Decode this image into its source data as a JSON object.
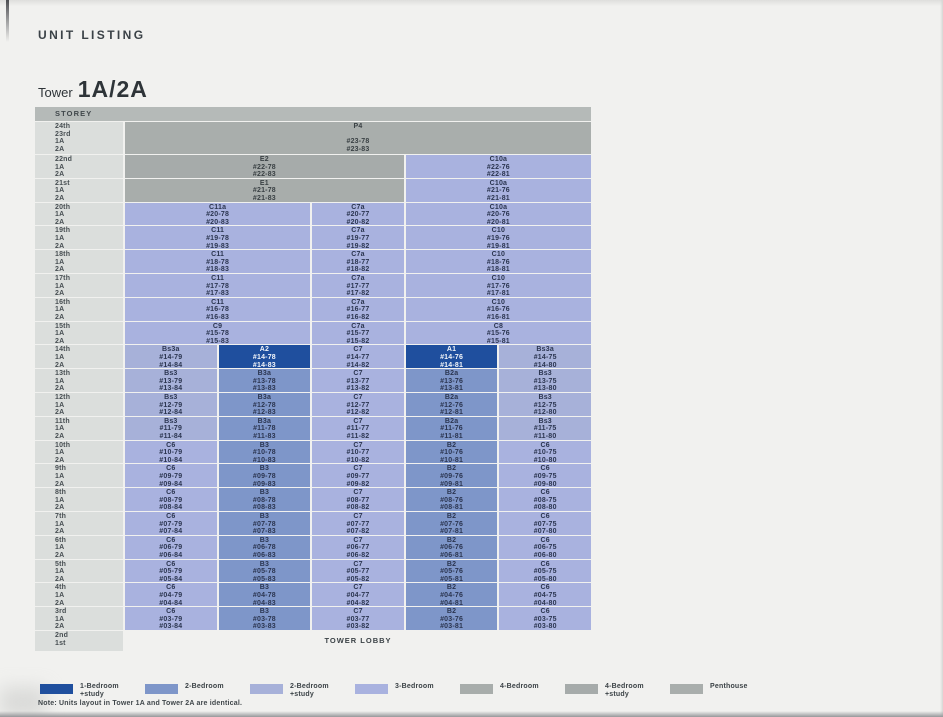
{
  "page": {
    "title": "UNIT LISTING",
    "tower_label": "Tower",
    "tower_value": "1A/2A",
    "note": "Note: Units layout in Tower 1A and Tower 2A are identical."
  },
  "colors": {
    "one_bed_study": "#1f4f9e",
    "two_bed": "#7e96c9",
    "two_bed_study": "#a7b1d9",
    "three_bed": "#a9b2df",
    "four_bed": "#a8adab",
    "four_bed_study": "#a6abaa",
    "penthouse": "#a9aeac",
    "lobby": "transparent",
    "header_bg": "#b5bab8",
    "storey_bg": "#dbdedc",
    "page_bg": "#f1f1ef"
  },
  "table": {
    "header": "STOREY",
    "rows": [
      {
        "storey": [
          "24th",
          "23rd",
          "1A",
          "2A"
        ],
        "h": "tall",
        "cells": [
          {
            "span": 5,
            "type": "penthouse",
            "lines": [
              "P4",
              "",
              "#23-78",
              "#23-83"
            ]
          }
        ]
      },
      {
        "storey": [
          "22nd",
          "1A",
          "2A"
        ],
        "cells": [
          {
            "span": 3,
            "type": "four_bed_study",
            "lines": [
              "E2",
              "#22-78",
              "#22-83"
            ]
          },
          {
            "span": 2,
            "type": "three_bed",
            "lines": [
              "C10a",
              "#22-76",
              "#22-81"
            ]
          }
        ]
      },
      {
        "storey": [
          "21st",
          "1A",
          "2A"
        ],
        "cells": [
          {
            "span": 3,
            "type": "four_bed",
            "lines": [
              "E1",
              "#21-78",
              "#21-83"
            ]
          },
          {
            "span": 2,
            "type": "three_bed",
            "lines": [
              "C10a",
              "#21-76",
              "#21-81"
            ]
          }
        ]
      },
      {
        "storey": [
          "20th",
          "1A",
          "2A"
        ],
        "cells": [
          {
            "span": 2,
            "type": "three_bed",
            "lines": [
              "C11a",
              "#20-78",
              "#20-83"
            ]
          },
          {
            "span": 1,
            "type": "three_bed",
            "lines": [
              "C7a",
              "#20-77",
              "#20-82"
            ]
          },
          {
            "span": 2,
            "type": "three_bed",
            "lines": [
              "C10a",
              "#20-76",
              "#20-81"
            ]
          }
        ]
      },
      {
        "storey": [
          "19th",
          "1A",
          "2A"
        ],
        "cells": [
          {
            "span": 2,
            "type": "three_bed",
            "lines": [
              "C11",
              "#19-78",
              "#19-83"
            ]
          },
          {
            "span": 1,
            "type": "three_bed",
            "lines": [
              "C7a",
              "#19-77",
              "#19-82"
            ]
          },
          {
            "span": 2,
            "type": "three_bed",
            "lines": [
              "C10",
              "#19-76",
              "#19-81"
            ]
          }
        ]
      },
      {
        "storey": [
          "18th",
          "1A",
          "2A"
        ],
        "cells": [
          {
            "span": 2,
            "type": "three_bed",
            "lines": [
              "C11",
              "#18-78",
              "#18-83"
            ]
          },
          {
            "span": 1,
            "type": "three_bed",
            "lines": [
              "C7a",
              "#18-77",
              "#18-82"
            ]
          },
          {
            "span": 2,
            "type": "three_bed",
            "lines": [
              "C10",
              "#18-76",
              "#18-81"
            ]
          }
        ]
      },
      {
        "storey": [
          "17th",
          "1A",
          "2A"
        ],
        "cells": [
          {
            "span": 2,
            "type": "three_bed",
            "lines": [
              "C11",
              "#17-78",
              "#17-83"
            ]
          },
          {
            "span": 1,
            "type": "three_bed",
            "lines": [
              "C7a",
              "#17-77",
              "#17-82"
            ]
          },
          {
            "span": 2,
            "type": "three_bed",
            "lines": [
              "C10",
              "#17-76",
              "#17-81"
            ]
          }
        ]
      },
      {
        "storey": [
          "16th",
          "1A",
          "2A"
        ],
        "cells": [
          {
            "span": 2,
            "type": "three_bed",
            "lines": [
              "C11",
              "#16-78",
              "#16-83"
            ]
          },
          {
            "span": 1,
            "type": "three_bed",
            "lines": [
              "C7a",
              "#16-77",
              "#16-82"
            ]
          },
          {
            "span": 2,
            "type": "three_bed",
            "lines": [
              "C10",
              "#16-76",
              "#16-81"
            ]
          }
        ]
      },
      {
        "storey": [
          "15th",
          "1A",
          "2A"
        ],
        "cells": [
          {
            "span": 2,
            "type": "three_bed",
            "lines": [
              "C9",
              "#15-78",
              "#15-83"
            ]
          },
          {
            "span": 1,
            "type": "three_bed",
            "lines": [
              "C7a",
              "#15-77",
              "#15-82"
            ]
          },
          {
            "span": 2,
            "type": "three_bed",
            "lines": [
              "C8",
              "#15-76",
              "#15-81"
            ]
          }
        ]
      },
      {
        "storey": [
          "14th",
          "1A",
          "2A"
        ],
        "cells": [
          {
            "span": 1,
            "type": "two_bed_study",
            "lines": [
              "Bs3a",
              "#14-79",
              "#14-84"
            ]
          },
          {
            "span": 1,
            "type": "one_bed_study",
            "lines": [
              "A2",
              "#14-78",
              "#14-83"
            ]
          },
          {
            "span": 1,
            "type": "three_bed",
            "lines": [
              "C7",
              "#14-77",
              "#14-82"
            ]
          },
          {
            "span": 1,
            "type": "one_bed_study",
            "lines": [
              "A1",
              "#14-76",
              "#14-81"
            ]
          },
          {
            "span": 1,
            "type": "two_bed_study",
            "lines": [
              "Bs3a",
              "#14-75",
              "#14-80"
            ]
          }
        ]
      },
      {
        "storey": [
          "13th",
          "1A",
          "2A"
        ],
        "cells": [
          {
            "span": 1,
            "type": "two_bed_study",
            "lines": [
              "Bs3",
              "#13-79",
              "#13-84"
            ]
          },
          {
            "span": 1,
            "type": "two_bed",
            "lines": [
              "B3a",
              "#13-78",
              "#13-83"
            ]
          },
          {
            "span": 1,
            "type": "three_bed",
            "lines": [
              "C7",
              "#13-77",
              "#13-82"
            ]
          },
          {
            "span": 1,
            "type": "two_bed",
            "lines": [
              "B2a",
              "#13-76",
              "#13-81"
            ]
          },
          {
            "span": 1,
            "type": "two_bed_study",
            "lines": [
              "Bs3",
              "#13-75",
              "#13-80"
            ]
          }
        ]
      },
      {
        "storey": [
          "12th",
          "1A",
          "2A"
        ],
        "cells": [
          {
            "span": 1,
            "type": "two_bed_study",
            "lines": [
              "Bs3",
              "#12-79",
              "#12-84"
            ]
          },
          {
            "span": 1,
            "type": "two_bed",
            "lines": [
              "B3a",
              "#12-78",
              "#12-83"
            ]
          },
          {
            "span": 1,
            "type": "three_bed",
            "lines": [
              "C7",
              "#12-77",
              "#12-82"
            ]
          },
          {
            "span": 1,
            "type": "two_bed",
            "lines": [
              "B2a",
              "#12-76",
              "#12-81"
            ]
          },
          {
            "span": 1,
            "type": "two_bed_study",
            "lines": [
              "Bs3",
              "#12-75",
              "#12-80"
            ]
          }
        ]
      },
      {
        "storey": [
          "11th",
          "1A",
          "2A"
        ],
        "cells": [
          {
            "span": 1,
            "type": "two_bed_study",
            "lines": [
              "Bs3",
              "#11-79",
              "#11-84"
            ]
          },
          {
            "span": 1,
            "type": "two_bed",
            "lines": [
              "B3a",
              "#11-78",
              "#11-83"
            ]
          },
          {
            "span": 1,
            "type": "three_bed",
            "lines": [
              "C7",
              "#11-77",
              "#11-82"
            ]
          },
          {
            "span": 1,
            "type": "two_bed",
            "lines": [
              "B2a",
              "#11-76",
              "#11-81"
            ]
          },
          {
            "span": 1,
            "type": "two_bed_study",
            "lines": [
              "Bs3",
              "#11-75",
              "#11-80"
            ]
          }
        ]
      },
      {
        "storey": [
          "10th",
          "1A",
          "2A"
        ],
        "cells": [
          {
            "span": 1,
            "type": "three_bed",
            "lines": [
              "C6",
              "#10-79",
              "#10-84"
            ]
          },
          {
            "span": 1,
            "type": "two_bed",
            "lines": [
              "B3",
              "#10-78",
              "#10-83"
            ]
          },
          {
            "span": 1,
            "type": "three_bed",
            "lines": [
              "C7",
              "#10-77",
              "#10-82"
            ]
          },
          {
            "span": 1,
            "type": "two_bed",
            "lines": [
              "B2",
              "#10-76",
              "#10-81"
            ]
          },
          {
            "span": 1,
            "type": "three_bed",
            "lines": [
              "C6",
              "#10-75",
              "#10-80"
            ]
          }
        ]
      },
      {
        "storey": [
          "9th",
          "1A",
          "2A"
        ],
        "cells": [
          {
            "span": 1,
            "type": "three_bed",
            "lines": [
              "C6",
              "#09-79",
              "#09-84"
            ]
          },
          {
            "span": 1,
            "type": "two_bed",
            "lines": [
              "B3",
              "#09-78",
              "#09-83"
            ]
          },
          {
            "span": 1,
            "type": "three_bed",
            "lines": [
              "C7",
              "#09-77",
              "#09-82"
            ]
          },
          {
            "span": 1,
            "type": "two_bed",
            "lines": [
              "B2",
              "#09-76",
              "#09-81"
            ]
          },
          {
            "span": 1,
            "type": "three_bed",
            "lines": [
              "C6",
              "#09-75",
              "#09-80"
            ]
          }
        ]
      },
      {
        "storey": [
          "8th",
          "1A",
          "2A"
        ],
        "cells": [
          {
            "span": 1,
            "type": "three_bed",
            "lines": [
              "C6",
              "#08-79",
              "#08-84"
            ]
          },
          {
            "span": 1,
            "type": "two_bed",
            "lines": [
              "B3",
              "#08-78",
              "#08-83"
            ]
          },
          {
            "span": 1,
            "type": "three_bed",
            "lines": [
              "C7",
              "#08-77",
              "#08-82"
            ]
          },
          {
            "span": 1,
            "type": "two_bed",
            "lines": [
              "B2",
              "#08-76",
              "#08-81"
            ]
          },
          {
            "span": 1,
            "type": "three_bed",
            "lines": [
              "C6",
              "#08-75",
              "#08-80"
            ]
          }
        ]
      },
      {
        "storey": [
          "7th",
          "1A",
          "2A"
        ],
        "cells": [
          {
            "span": 1,
            "type": "three_bed",
            "lines": [
              "C6",
              "#07-79",
              "#07-84"
            ]
          },
          {
            "span": 1,
            "type": "two_bed",
            "lines": [
              "B3",
              "#07-78",
              "#07-83"
            ]
          },
          {
            "span": 1,
            "type": "three_bed",
            "lines": [
              "C7",
              "#07-77",
              "#07-82"
            ]
          },
          {
            "span": 1,
            "type": "two_bed",
            "lines": [
              "B2",
              "#07-76",
              "#07-81"
            ]
          },
          {
            "span": 1,
            "type": "three_bed",
            "lines": [
              "C6",
              "#07-75",
              "#07-80"
            ]
          }
        ]
      },
      {
        "storey": [
          "6th",
          "1A",
          "2A"
        ],
        "cells": [
          {
            "span": 1,
            "type": "three_bed",
            "lines": [
              "C6",
              "#06-79",
              "#06-84"
            ]
          },
          {
            "span": 1,
            "type": "two_bed",
            "lines": [
              "B3",
              "#06-78",
              "#06-83"
            ]
          },
          {
            "span": 1,
            "type": "three_bed",
            "lines": [
              "C7",
              "#06-77",
              "#06-82"
            ]
          },
          {
            "span": 1,
            "type": "two_bed",
            "lines": [
              "B2",
              "#06-76",
              "#06-81"
            ]
          },
          {
            "span": 1,
            "type": "three_bed",
            "lines": [
              "C6",
              "#06-75",
              "#06-80"
            ]
          }
        ]
      },
      {
        "storey": [
          "5th",
          "1A",
          "2A"
        ],
        "cells": [
          {
            "span": 1,
            "type": "three_bed",
            "lines": [
              "C6",
              "#05-79",
              "#05-84"
            ]
          },
          {
            "span": 1,
            "type": "two_bed",
            "lines": [
              "B3",
              "#05-78",
              "#05-83"
            ]
          },
          {
            "span": 1,
            "type": "three_bed",
            "lines": [
              "C7",
              "#05-77",
              "#05-82"
            ]
          },
          {
            "span": 1,
            "type": "two_bed",
            "lines": [
              "B2",
              "#05-76",
              "#05-81"
            ]
          },
          {
            "span": 1,
            "type": "three_bed",
            "lines": [
              "C6",
              "#05-75",
              "#05-80"
            ]
          }
        ]
      },
      {
        "storey": [
          "4th",
          "1A",
          "2A"
        ],
        "cells": [
          {
            "span": 1,
            "type": "three_bed",
            "lines": [
              "C6",
              "#04-79",
              "#04-84"
            ]
          },
          {
            "span": 1,
            "type": "two_bed",
            "lines": [
              "B3",
              "#04-78",
              "#04-83"
            ]
          },
          {
            "span": 1,
            "type": "three_bed",
            "lines": [
              "C7",
              "#04-77",
              "#04-82"
            ]
          },
          {
            "span": 1,
            "type": "two_bed",
            "lines": [
              "B2",
              "#04-76",
              "#04-81"
            ]
          },
          {
            "span": 1,
            "type": "three_bed",
            "lines": [
              "C6",
              "#04-75",
              "#04-80"
            ]
          }
        ]
      },
      {
        "storey": [
          "3rd",
          "1A",
          "2A"
        ],
        "cells": [
          {
            "span": 1,
            "type": "three_bed",
            "lines": [
              "C6",
              "#03-79",
              "#03-84"
            ]
          },
          {
            "span": 1,
            "type": "two_bed",
            "lines": [
              "B3",
              "#03-78",
              "#03-83"
            ]
          },
          {
            "span": 1,
            "type": "three_bed",
            "lines": [
              "C7",
              "#03-77",
              "#03-82"
            ]
          },
          {
            "span": 1,
            "type": "two_bed",
            "lines": [
              "B2",
              "#03-76",
              "#03-81"
            ]
          },
          {
            "span": 1,
            "type": "three_bed",
            "lines": [
              "C6",
              "#03-75",
              "#03-80"
            ]
          }
        ]
      },
      {
        "storey": [
          "2nd",
          "1st"
        ],
        "h": "lobby",
        "cells": [
          {
            "span": 5,
            "type": "lobby",
            "lines": [
              "TOWER LOBBY"
            ]
          }
        ]
      }
    ]
  },
  "legend": [
    {
      "type": "one_bed_study",
      "lines": [
        "1-Bedroom",
        "+study"
      ]
    },
    {
      "type": "two_bed",
      "lines": [
        "2-Bedroom"
      ]
    },
    {
      "type": "two_bed_study",
      "lines": [
        "2-Bedroom",
        "+study"
      ]
    },
    {
      "type": "three_bed",
      "lines": [
        "3-Bedroom"
      ]
    },
    {
      "type": "four_bed",
      "lines": [
        "4-Bedroom"
      ]
    },
    {
      "type": "four_bed_study",
      "lines": [
        "4-Bedroom",
        "+study"
      ]
    },
    {
      "type": "penthouse",
      "lines": [
        "Penthouse"
      ]
    }
  ]
}
